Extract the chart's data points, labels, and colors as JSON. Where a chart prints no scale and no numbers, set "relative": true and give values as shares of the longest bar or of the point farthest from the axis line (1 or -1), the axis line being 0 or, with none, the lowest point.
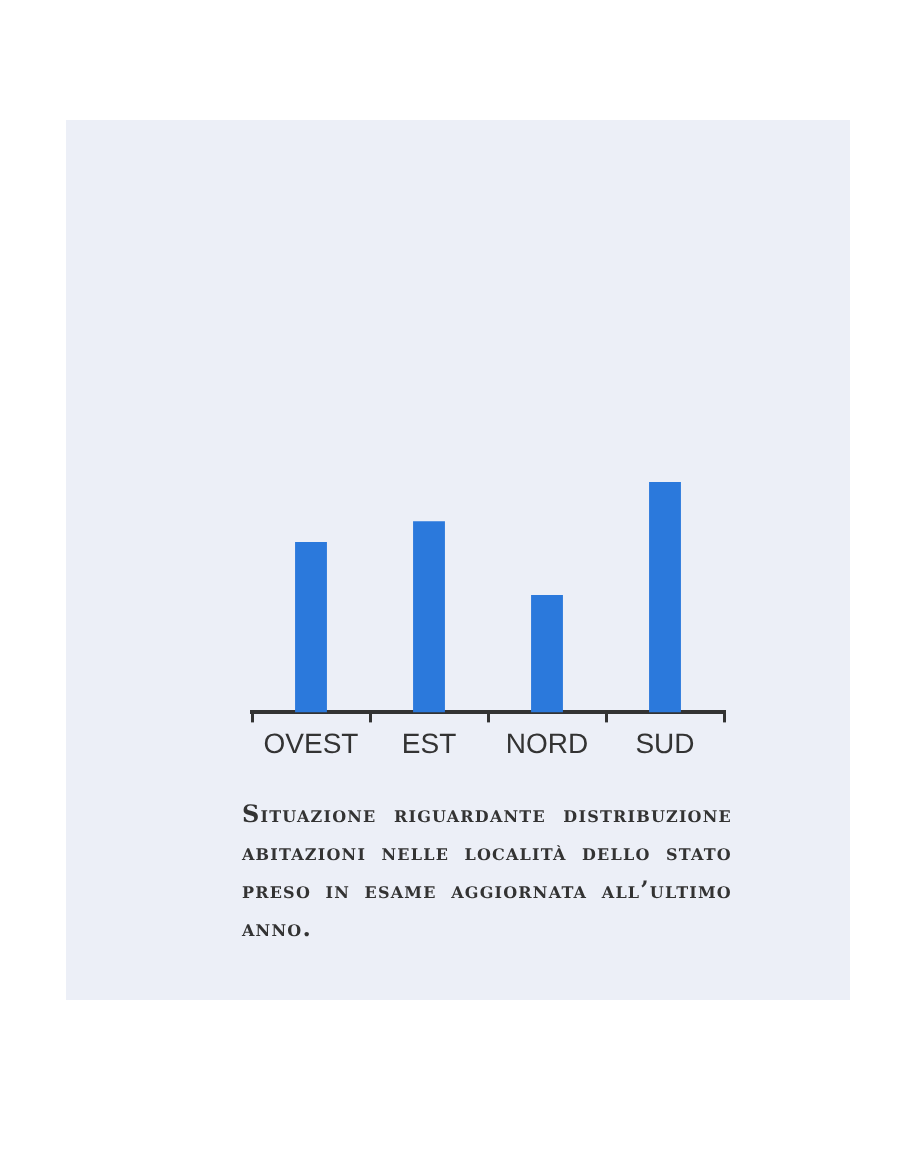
{
  "chart_data": {
    "type": "bar",
    "relative": true,
    "categories": [
      "OVEST",
      "EST",
      "NORD",
      "SUD"
    ],
    "values": [
      0.74,
      0.83,
      0.51,
      1
    ],
    "color": "#2b79dc",
    "annotations": [
      "Situazione riguardante distribuzione abitazioni nelle località dello stato preso in esame aggiornata all’ultimo anno."
    ]
  }
}
